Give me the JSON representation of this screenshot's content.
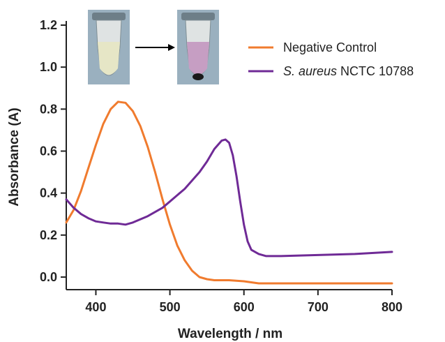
{
  "chart_data": {
    "type": "line",
    "xlabel": "Wavelength / nm",
    "ylabel": "Absorbance (A)",
    "xlim": [
      360,
      800
    ],
    "ylim": [
      -0.06,
      1.22
    ],
    "x_ticks": [
      400,
      500,
      600,
      700,
      800
    ],
    "y_ticks": [
      0.0,
      0.2,
      0.4,
      0.6,
      0.8,
      1.0,
      1.2
    ],
    "y_tick_labels": [
      "0.0",
      "0.2",
      "0.4",
      "0.6",
      "0.8",
      "1.0",
      "1.2"
    ],
    "grid": false,
    "legend_position": "top-right",
    "series": [
      {
        "name": "Negative Control",
        "color": "#f07b2e",
        "points": [
          [
            360,
            0.26
          ],
          [
            370,
            0.32
          ],
          [
            380,
            0.41
          ],
          [
            390,
            0.52
          ],
          [
            400,
            0.63
          ],
          [
            410,
            0.73
          ],
          [
            420,
            0.8
          ],
          [
            430,
            0.835
          ],
          [
            440,
            0.83
          ],
          [
            450,
            0.79
          ],
          [
            460,
            0.72
          ],
          [
            470,
            0.62
          ],
          [
            480,
            0.5
          ],
          [
            490,
            0.37
          ],
          [
            500,
            0.25
          ],
          [
            510,
            0.15
          ],
          [
            520,
            0.08
          ],
          [
            530,
            0.03
          ],
          [
            540,
            0.0
          ],
          [
            550,
            -0.01
          ],
          [
            560,
            -0.015
          ],
          [
            580,
            -0.015
          ],
          [
            600,
            -0.02
          ],
          [
            610,
            -0.025
          ],
          [
            620,
            -0.03
          ],
          [
            650,
            -0.03
          ],
          [
            700,
            -0.03
          ],
          [
            750,
            -0.03
          ],
          [
            800,
            -0.03
          ]
        ]
      },
      {
        "name": "S. aureus NCTC 10788",
        "name_italic": "S. aureus",
        "name_rest": " NCTC 10788",
        "color": "#6f2a96",
        "points": [
          [
            360,
            0.37
          ],
          [
            370,
            0.33
          ],
          [
            380,
            0.3
          ],
          [
            390,
            0.28
          ],
          [
            400,
            0.265
          ],
          [
            410,
            0.26
          ],
          [
            420,
            0.255
          ],
          [
            430,
            0.255
          ],
          [
            440,
            0.25
          ],
          [
            450,
            0.26
          ],
          [
            460,
            0.275
          ],
          [
            470,
            0.29
          ],
          [
            480,
            0.31
          ],
          [
            490,
            0.33
          ],
          [
            500,
            0.36
          ],
          [
            510,
            0.39
          ],
          [
            520,
            0.42
          ],
          [
            530,
            0.46
          ],
          [
            540,
            0.5
          ],
          [
            550,
            0.55
          ],
          [
            560,
            0.61
          ],
          [
            570,
            0.65
          ],
          [
            575,
            0.655
          ],
          [
            580,
            0.64
          ],
          [
            585,
            0.58
          ],
          [
            590,
            0.48
          ],
          [
            595,
            0.36
          ],
          [
            600,
            0.25
          ],
          [
            605,
            0.17
          ],
          [
            610,
            0.13
          ],
          [
            620,
            0.11
          ],
          [
            630,
            0.1
          ],
          [
            650,
            0.1
          ],
          [
            700,
            0.105
          ],
          [
            750,
            0.11
          ],
          [
            800,
            0.12
          ]
        ]
      }
    ]
  },
  "inset": {
    "tube_left_liquid_color": "#e6e6c6",
    "tube_right_liquid_color": "#c69ec3",
    "arrow_color": "#000000"
  }
}
